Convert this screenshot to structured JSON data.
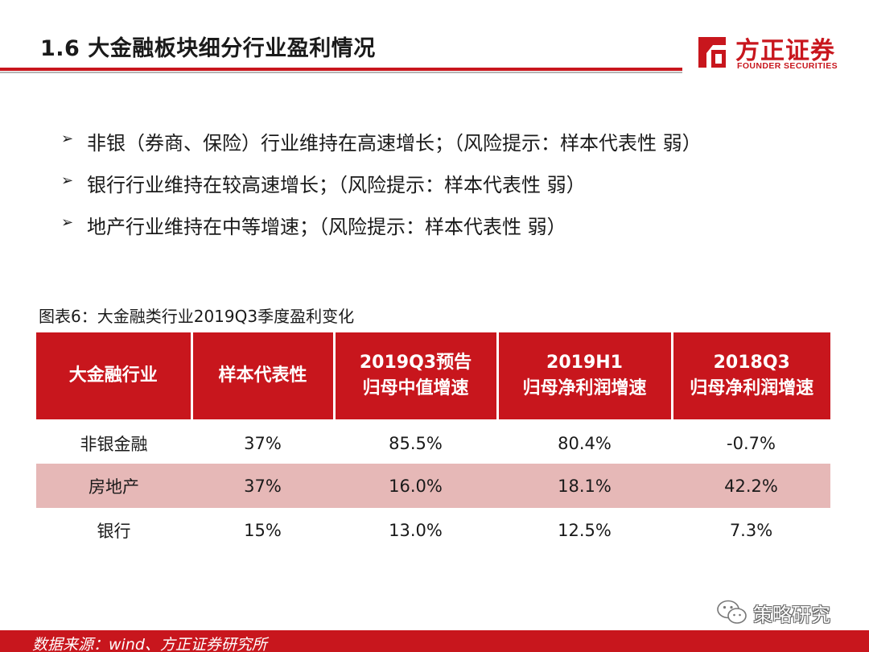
{
  "header": {
    "title": "1.6 大金融板块细分行业盈利情况"
  },
  "logo": {
    "name_cn": "方正证券",
    "name_en": "FOUNDER SECURITIES",
    "brand_color": "#c8161d"
  },
  "bullets": [
    "非银（券商、保险）行业维持在高速增长；（风险提示：样本代表性 弱）",
    "银行行业维持在较高速增长；（风险提示：样本代表性 弱）",
    "地产行业维持在中等增速；（风险提示：样本代表性 弱）"
  ],
  "bullet_marker": "➢",
  "caption": "图表6：大金融类行业2019Q3季度盈利变化",
  "table": {
    "headers": [
      {
        "line1": "大金融行业",
        "line2": ""
      },
      {
        "line1": "样本代表性",
        "line2": ""
      },
      {
        "line1": "2019Q3预告",
        "line2": "归母中值增速"
      },
      {
        "line1": "2019H1",
        "line2": "归母净利润增速"
      },
      {
        "line1": "2018Q3",
        "line2": "归母净利润增速"
      }
    ],
    "rows": [
      [
        "非银金融",
        "37%",
        "85.5%",
        "80.4%",
        "-0.7%"
      ],
      [
        "房地产",
        "37%",
        "16.0%",
        "18.1%",
        "42.2%"
      ],
      [
        "银行",
        "15%",
        "13.0%",
        "12.5%",
        "7.3%"
      ]
    ]
  },
  "watermark": {
    "text": "策略研究",
    "icon": "wechat-icon"
  },
  "footer": {
    "source": "数据来源：wind、方正证券研究所"
  }
}
